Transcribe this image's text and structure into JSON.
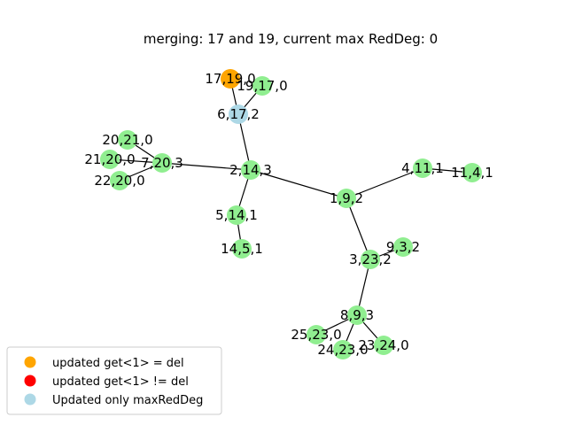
{
  "title": "merging: 17 and 19, current max RedDeg: 0",
  "colors": {
    "default": "#90ee90",
    "updated_del": "#ffa500",
    "updated_not_del": "#ff0000",
    "updated_max_red_deg": "#add8e6"
  },
  "nodes": [
    {
      "id": "n17",
      "label": "17,19,0",
      "color": "updated_del"
    },
    {
      "id": "n19",
      "label": "19,17,0",
      "color": "default"
    },
    {
      "id": "n6",
      "label": "6,17,2",
      "color": "updated_max_red_deg"
    },
    {
      "id": "n20",
      "label": "20,21,0",
      "color": "default"
    },
    {
      "id": "n21",
      "label": "21,20,0",
      "color": "default"
    },
    {
      "id": "n7",
      "label": "7,20,3",
      "color": "default"
    },
    {
      "id": "n22",
      "label": "22,20,0",
      "color": "default"
    },
    {
      "id": "n2",
      "label": "2,14,3",
      "color": "default"
    },
    {
      "id": "n4",
      "label": "4,11,1",
      "color": "default"
    },
    {
      "id": "n11",
      "label": "11,4,1",
      "color": "default"
    },
    {
      "id": "n1",
      "label": "1,9,2",
      "color": "default"
    },
    {
      "id": "n5",
      "label": "5,14,1",
      "color": "default"
    },
    {
      "id": "n14",
      "label": "14,5,1",
      "color": "default"
    },
    {
      "id": "n9",
      "label": "9,3,2",
      "color": "default"
    },
    {
      "id": "n3",
      "label": "3,23,2",
      "color": "default"
    },
    {
      "id": "n8",
      "label": "8,9,3",
      "color": "default"
    },
    {
      "id": "n25",
      "label": "25,23,0",
      "color": "default"
    },
    {
      "id": "n23",
      "label": "23,24,0",
      "color": "default"
    },
    {
      "id": "n24",
      "label": "24,23,0",
      "color": "default"
    }
  ],
  "edges": [
    [
      "n17",
      "n6"
    ],
    [
      "n19",
      "n6"
    ],
    [
      "n6",
      "n2"
    ],
    [
      "n20",
      "n7"
    ],
    [
      "n21",
      "n7"
    ],
    [
      "n22",
      "n7"
    ],
    [
      "n7",
      "n2"
    ],
    [
      "n2",
      "n5"
    ],
    [
      "n5",
      "n14"
    ],
    [
      "n2",
      "n1"
    ],
    [
      "n1",
      "n4"
    ],
    [
      "n4",
      "n11"
    ],
    [
      "n1",
      "n3"
    ],
    [
      "n3",
      "n9"
    ],
    [
      "n3",
      "n8"
    ],
    [
      "n8",
      "n25"
    ],
    [
      "n8",
      "n24"
    ],
    [
      "n8",
      "n23"
    ]
  ],
  "legend": [
    {
      "label": "updated get<1> = del",
      "color": "updated_del"
    },
    {
      "label": "updated get<1> != del",
      "color": "updated_not_del"
    },
    {
      "label": "Updated only maxRedDeg",
      "color": "updated_max_red_deg"
    }
  ]
}
